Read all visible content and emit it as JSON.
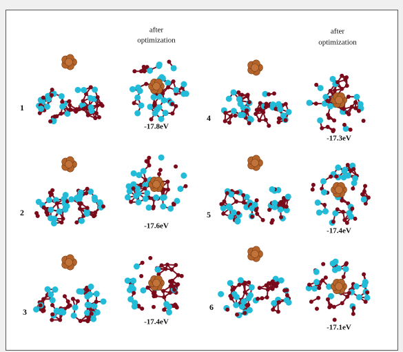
{
  "column_headers": [
    [
      "after",
      "optimization"
    ],
    [
      "after",
      "optimization"
    ]
  ],
  "panels": [
    {
      "label": "1",
      "energy": "-17.8eV"
    },
    {
      "label": "2",
      "energy": "-17.6eV"
    },
    {
      "label": "3",
      "energy": "-17.4eV"
    },
    {
      "label": "4",
      "energy": "-17.3eV"
    },
    {
      "label": "5",
      "energy": "-17.4eV"
    },
    {
      "label": "6",
      "energy": "-17.1eV"
    }
  ]
}
